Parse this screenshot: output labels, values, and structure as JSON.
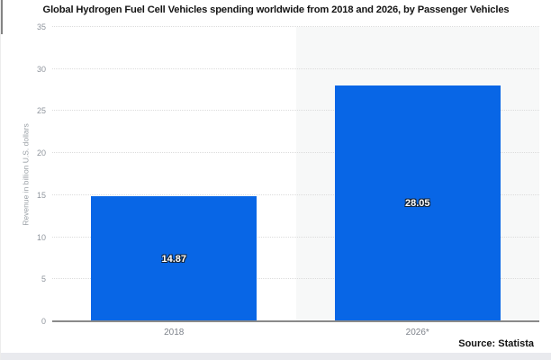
{
  "page": {
    "source_label": "Source: Statista"
  },
  "chart_data": {
    "type": "bar",
    "title": "Global Hydrogen Fuel Cell Vehicles spending worldwide from 2018  and 2026, by Passenger Vehicles",
    "categories": [
      "2018",
      "2026*"
    ],
    "values": [
      14.87,
      28.05
    ],
    "value_labels": [
      "14.87",
      "28.05"
    ],
    "xlabel": "",
    "ylabel": "Revenue in billion U.S. dollars",
    "ylim": [
      0,
      35
    ],
    "yticks": [
      0,
      5,
      10,
      15,
      20,
      25,
      30,
      35
    ],
    "grid": "horizontal-dotted",
    "legend_position": "none",
    "bar_color": "#0866e6",
    "highlight_column_index": 1,
    "highlight_band_color": "#f7f8f8",
    "value_label_color": "#ffffff",
    "axis_label_color": "#8f959d",
    "source": "Source: Statista"
  }
}
